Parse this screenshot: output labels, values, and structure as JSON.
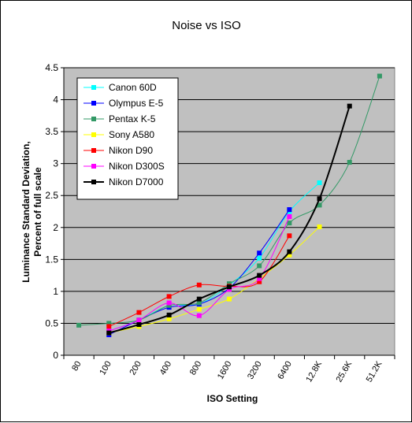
{
  "chart_data": {
    "type": "line",
    "title": "Noise vs ISO",
    "xlabel": "ISO Setting",
    "ylabel_line1": "Luminance Standard Deviation,",
    "ylabel_line2": "Percent of full scale",
    "categories": [
      "80",
      "100",
      "200",
      "400",
      "800",
      "1600",
      "3200",
      "6400",
      "12.8K",
      "25.6K",
      "51.2K"
    ],
    "ylim": [
      0,
      4.5
    ],
    "yticks": [
      "0",
      "0.5",
      "1",
      "1.5",
      "2",
      "2.5",
      "3",
      "3.5",
      "4",
      "4.5"
    ],
    "ytick_values": [
      0,
      0.5,
      1,
      1.5,
      2,
      2.5,
      3,
      3.5,
      4,
      4.5
    ],
    "grid": "horizontal",
    "plot_background": "#c0c0c0",
    "legend_position": "top-left",
    "series": [
      {
        "name": "Canon 60D",
        "color": "#00ffff",
        "marker": "square",
        "points": [
          [
            1,
            0.38
          ],
          [
            2,
            0.55
          ],
          [
            3,
            0.78
          ],
          [
            4,
            0.8
          ],
          [
            5,
            1.1
          ],
          [
            6,
            1.52
          ],
          [
            7,
            2.25
          ],
          [
            8,
            2.7
          ]
        ]
      },
      {
        "name": "Olympus E-5",
        "color": "#0000ff",
        "marker": "square",
        "points": [
          [
            1,
            0.32
          ],
          [
            2,
            0.55
          ],
          [
            3,
            0.75
          ],
          [
            4,
            0.8
          ],
          [
            5,
            1.05
          ],
          [
            6,
            1.6
          ],
          [
            7,
            2.28
          ]
        ]
      },
      {
        "name": "Pentax K-5",
        "color": "#339966",
        "marker": "square",
        "points": [
          [
            0,
            0.47
          ],
          [
            1,
            0.5
          ],
          [
            2,
            0.55
          ],
          [
            3,
            0.78
          ],
          [
            4,
            0.82
          ],
          [
            5,
            1.12
          ],
          [
            6,
            1.4
          ],
          [
            7,
            2.07
          ],
          [
            8,
            2.35
          ],
          [
            9,
            3.02
          ],
          [
            10,
            4.37
          ]
        ]
      },
      {
        "name": "Sony A580",
        "color": "#ffff00",
        "marker": "square",
        "points": [
          [
            1,
            0.35
          ],
          [
            2,
            0.45
          ],
          [
            3,
            0.57
          ],
          [
            4,
            0.72
          ],
          [
            5,
            0.88
          ],
          [
            6,
            1.2
          ],
          [
            7,
            1.57
          ],
          [
            8,
            2.01
          ]
        ]
      },
      {
        "name": "Nikon D90",
        "color": "#ff0000",
        "marker": "square",
        "points": [
          [
            1,
            0.45
          ],
          [
            2,
            0.67
          ],
          [
            3,
            0.92
          ],
          [
            4,
            1.1
          ],
          [
            5,
            1.08
          ],
          [
            6,
            1.15
          ],
          [
            7,
            1.87
          ]
        ]
      },
      {
        "name": "Nikon D300S",
        "color": "#ff00ff",
        "marker": "square",
        "points": [
          [
            1,
            0.38
          ],
          [
            2,
            0.55
          ],
          [
            3,
            0.82
          ],
          [
            4,
            0.62
          ],
          [
            5,
            1.03
          ],
          [
            6,
            1.2
          ],
          [
            7,
            2.17
          ]
        ]
      },
      {
        "name": "Nikon D7000",
        "color": "#000000",
        "marker": "square",
        "points": [
          [
            1,
            0.35
          ],
          [
            2,
            0.48
          ],
          [
            3,
            0.63
          ],
          [
            4,
            0.88
          ],
          [
            5,
            1.07
          ],
          [
            6,
            1.25
          ],
          [
            7,
            1.62
          ],
          [
            8,
            2.45
          ],
          [
            9,
            3.9
          ]
        ]
      }
    ]
  }
}
